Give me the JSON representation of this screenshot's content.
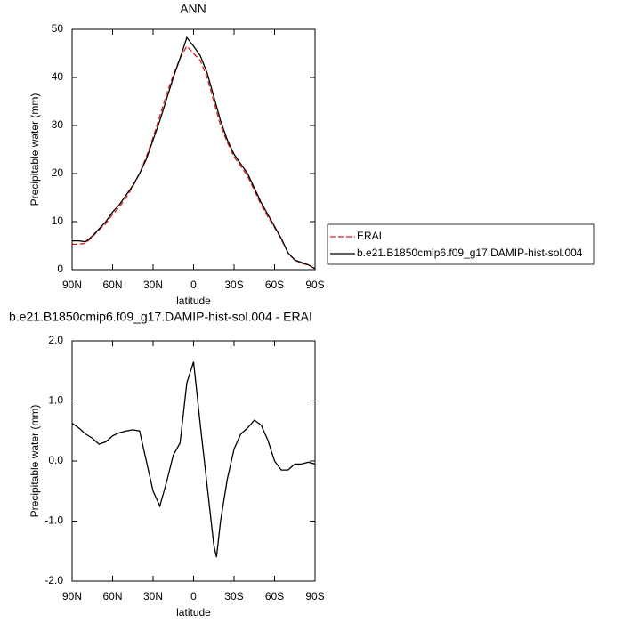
{
  "chart_data": [
    {
      "type": "line",
      "title": "ANN",
      "xlabel": "latitude",
      "ylabel": "Precipitable water (mm)",
      "x": [
        90,
        85,
        80,
        75,
        70,
        65,
        60,
        55,
        50,
        45,
        40,
        35,
        30,
        25,
        20,
        15,
        10,
        5,
        0,
        -5,
        -10,
        -15,
        -20,
        -25,
        -30,
        -35,
        -40,
        -45,
        -50,
        -55,
        -60,
        -65,
        -70,
        -75,
        -80,
        -85,
        -90
      ],
      "series": [
        {
          "name": "ERAI",
          "color": "#e41a1c",
          "line_style": "dashed",
          "values": [
            5.3,
            5.3,
            5.5,
            6.8,
            8.3,
            9.6,
            11.5,
            13,
            15,
            17.3,
            20,
            23.5,
            27.5,
            32,
            36.5,
            40.5,
            44,
            46.5,
            45,
            43.5,
            40,
            35,
            30,
            26.5,
            23.5,
            21.5,
            19.5,
            16.5,
            13.5,
            11,
            8.8,
            6.3,
            3.5,
            2,
            1.3,
            1,
            0.2
          ]
        },
        {
          "name": "b.e21.B1850cmip6.f09_g17.DAMIP-hist-sol.004",
          "color": "#000000",
          "line_style": "solid",
          "values": [
            6,
            6,
            5.8,
            7,
            8.5,
            10,
            12,
            13.5,
            15.5,
            17.5,
            20,
            23,
            27,
            31,
            35.5,
            40,
            44,
            48.3,
            46.5,
            44.5,
            41,
            36,
            31,
            27,
            24,
            22,
            20,
            17,
            14,
            11.5,
            9,
            6.5,
            3.5,
            2,
            1.5,
            1,
            0.2
          ]
        }
      ],
      "xlim": [
        90,
        -90
      ],
      "xticks": [
        {
          "value": 90,
          "label": "90N"
        },
        {
          "value": 60,
          "label": "60N"
        },
        {
          "value": 30,
          "label": "30N"
        },
        0,
        {
          "value": -30,
          "label": "30S"
        },
        {
          "value": -60,
          "label": "60S"
        },
        {
          "value": -90,
          "label": "90S"
        }
      ],
      "ylim": [
        0,
        50
      ],
      "yticks": [
        0,
        10,
        20,
        30,
        40,
        50
      ]
    },
    {
      "type": "line",
      "title": "b.e21.B1850cmip6.f09_g17.DAMIP-hist-sol.004 - ERAI",
      "xlabel": "latitude",
      "ylabel": "Precipitable water (mm)",
      "x": [
        90,
        85,
        80,
        75,
        70,
        65,
        60,
        55,
        50,
        45,
        40,
        35,
        30,
        25,
        20,
        15,
        10,
        5,
        0,
        -5,
        -10,
        -15,
        -17,
        -20,
        -25,
        -30,
        -35,
        -40,
        -45,
        -50,
        -55,
        -60,
        -65,
        -70,
        -75,
        -80,
        -85,
        -90
      ],
      "color": "#000000",
      "values": [
        0.63,
        0.55,
        0.45,
        0.38,
        0.28,
        0.32,
        0.42,
        0.47,
        0.5,
        0.52,
        0.5,
        0.0,
        -0.5,
        -0.75,
        -0.35,
        0.1,
        0.3,
        1.3,
        1.65,
        0.6,
        -0.4,
        -1.4,
        -1.6,
        -1.0,
        -0.3,
        0.2,
        0.45,
        0.55,
        0.68,
        0.6,
        0.35,
        0.0,
        -0.15,
        -0.15,
        -0.05,
        -0.05,
        -0.02,
        -0.05
      ],
      "xlim": [
        90,
        -90
      ],
      "xticks": [
        {
          "value": 90,
          "label": "90N"
        },
        {
          "value": 60,
          "label": "60N"
        },
        {
          "value": 30,
          "label": "30N"
        },
        0,
        {
          "value": -30,
          "label": "30S"
        },
        {
          "value": -60,
          "label": "60S"
        },
        {
          "value": -90,
          "label": "90S"
        }
      ],
      "ylim": [
        -2,
        2
      ],
      "yticks": [
        {
          "value": 2,
          "label": "2.0"
        },
        {
          "value": 1,
          "label": "1.0"
        },
        {
          "value": 0,
          "label": "0.0"
        },
        {
          "value": -1,
          "label": "-1.0"
        },
        {
          "value": -2,
          "label": "-2.0"
        }
      ]
    }
  ]
}
